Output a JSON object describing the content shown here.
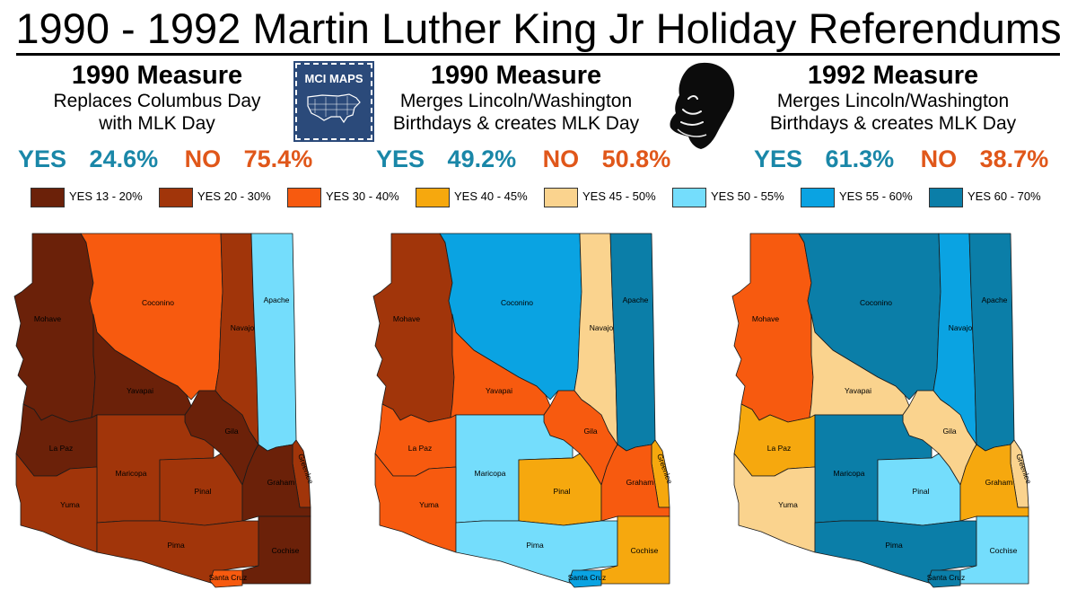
{
  "title": "1990 - 1992 Martin Luther King Jr Holiday Referendums",
  "logo_text": "MCI MAPS",
  "measures": [
    {
      "title": "1990 Measure",
      "desc1": "Replaces Columbus Day",
      "desc2": "with MLK Day",
      "yes_label": "YES",
      "yes_pct": "24.6%",
      "no_label": "NO",
      "no_pct": "75.4%"
    },
    {
      "title": "1990 Measure",
      "desc1": "Merges Lincoln/Washington",
      "desc2": "Birthdays & creates MLK Day",
      "yes_label": "YES",
      "yes_pct": "49.2%",
      "no_label": "NO",
      "no_pct": "50.8%"
    },
    {
      "title": "1992 Measure",
      "desc1": "Merges Lincoln/Washington",
      "desc2": "Birthdays & creates MLK Day",
      "yes_label": "YES",
      "yes_pct": "61.3%",
      "no_label": "NO",
      "no_pct": "38.7%"
    }
  ],
  "legend": [
    {
      "label": "YES 13 - 20%",
      "color": "#6b2109"
    },
    {
      "label": "YES 20 - 30%",
      "color": "#a1350a"
    },
    {
      "label": "YES 30 - 40%",
      "color": "#f75a0f"
    },
    {
      "label": "YES 40 - 45%",
      "color": "#f6a80e"
    },
    {
      "label": "YES 45 - 50%",
      "color": "#fad38e"
    },
    {
      "label": "YES 50 - 55%",
      "color": "#74ddfc"
    },
    {
      "label": "YES 55 - 60%",
      "color": "#0aa3e2"
    },
    {
      "label": "YES 60 - 70%",
      "color": "#0b7ea8"
    }
  ],
  "counties": [
    "Mohave",
    "Coconino",
    "Navajo",
    "Apache",
    "Yavapai",
    "La Paz",
    "Gila",
    "Greenlee",
    "Maricopa",
    "Pinal",
    "Graham",
    "Yuma",
    "Pima",
    "Cochise",
    "Santa Cruz"
  ],
  "maps": [
    {
      "Mohave": 0,
      "Coconino": 2,
      "Navajo": 1,
      "Apache": 5,
      "Yavapai": 0,
      "La Paz": 0,
      "Gila": 0,
      "Greenlee": 1,
      "Maricopa": 1,
      "Pinal": 1,
      "Graham": 0,
      "Yuma": 1,
      "Pima": 1,
      "Cochise": 0,
      "Santa Cruz": 2
    },
    {
      "Mohave": 1,
      "Coconino": 6,
      "Navajo": 4,
      "Apache": 7,
      "Yavapai": 2,
      "La Paz": 2,
      "Gila": 2,
      "Greenlee": 3,
      "Maricopa": 5,
      "Pinal": 3,
      "Graham": 2,
      "Yuma": 2,
      "Pima": 5,
      "Cochise": 3,
      "Santa Cruz": 6
    },
    {
      "Mohave": 2,
      "Coconino": 7,
      "Navajo": 6,
      "Apache": 7,
      "Yavapai": 4,
      "La Paz": 3,
      "Gila": 4,
      "Greenlee": 4,
      "Maricopa": 7,
      "Pinal": 5,
      "Graham": 3,
      "Yuma": 4,
      "Pima": 7,
      "Cochise": 5,
      "Santa Cruz": 7
    }
  ]
}
